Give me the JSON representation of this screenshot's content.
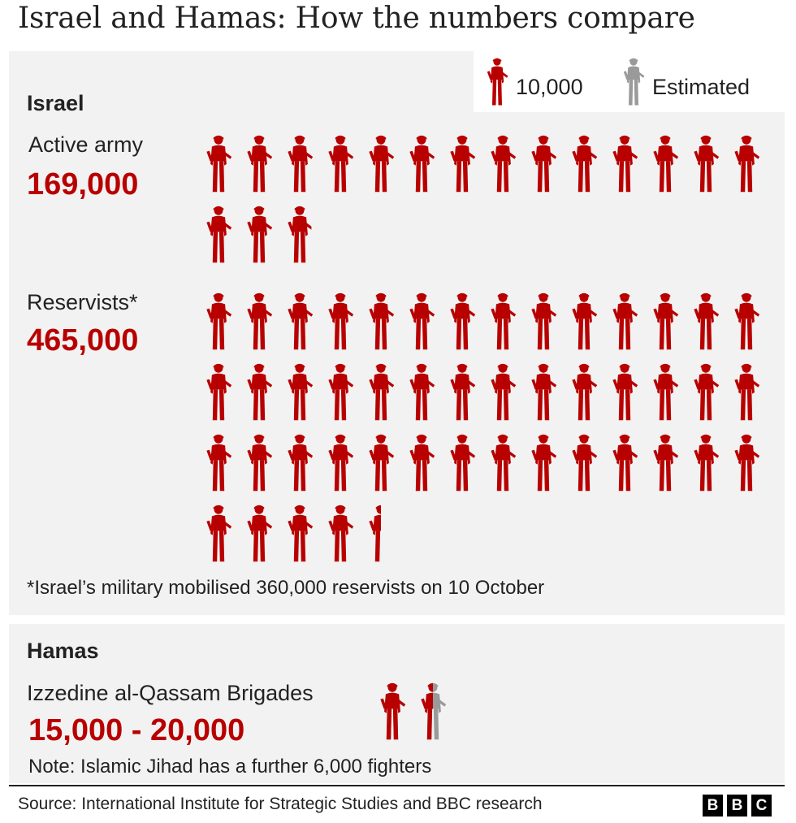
{
  "title": "Israel and Hamas: How the numbers compare",
  "legend": {
    "unit_label": "10,000",
    "estimated_label": "Estimated",
    "unit_color": "#b80000",
    "estimated_color": "#9a9a9a",
    "icon": "soldier-icon"
  },
  "israel": {
    "section_title": "Israel",
    "active": {
      "label": "Active army",
      "value_text": "169,000"
    },
    "reservists": {
      "label": "Reservists*",
      "value_text": "465,000"
    },
    "footnote": "*Israel’s military mobilised 360,000 reservists on 10 October"
  },
  "hamas": {
    "section_title": "Hamas",
    "brigades": {
      "label": "Izzedine al-Qassam Brigades",
      "value_text": "15,000 - 20,000"
    },
    "note": "Note: Islamic Jihad has a further 6,000 fighters"
  },
  "source": "Source: International Institute for Strategic Studies and BBC research",
  "brand": [
    "B",
    "B",
    "C"
  ],
  "chart_data": {
    "type": "pictogram",
    "unit_per_icon": 10000,
    "series": [
      {
        "name": "Active army",
        "group": "Israel",
        "value": 169000
      },
      {
        "name": "Reservists*",
        "group": "Israel",
        "value": 465000
      },
      {
        "name": "Izzedine al-Qassam Brigades",
        "group": "Hamas",
        "value": 15000,
        "estimated_upper": 20000
      }
    ],
    "colors": {
      "confirmed": "#b80000",
      "estimated": "#9a9a9a"
    }
  }
}
